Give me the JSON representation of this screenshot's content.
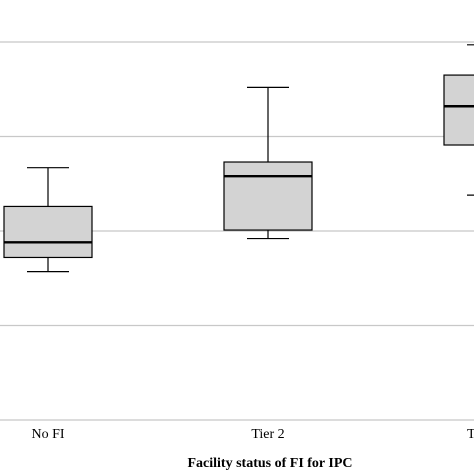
{
  "chart_data": {
    "type": "box",
    "x_label": "Facility status of FI for IPC",
    "categories": [
      "No FI",
      "Tier 2",
      "T"
    ],
    "series": [
      {
        "color": "#d3d3d3",
        "min": [
          1.57,
          1.92,
          2.38
        ],
        "q1": [
          1.72,
          2.01,
          2.91
        ],
        "median": [
          1.88,
          2.58,
          3.32
        ],
        "q3": [
          2.26,
          2.73,
          3.65
        ],
        "max": [
          2.67,
          3.52,
          3.97
        ]
      }
    ],
    "ylim": [
      0,
      4
    ],
    "gridlines": [
      0,
      1,
      2,
      3,
      4
    ],
    "grid": true
  }
}
